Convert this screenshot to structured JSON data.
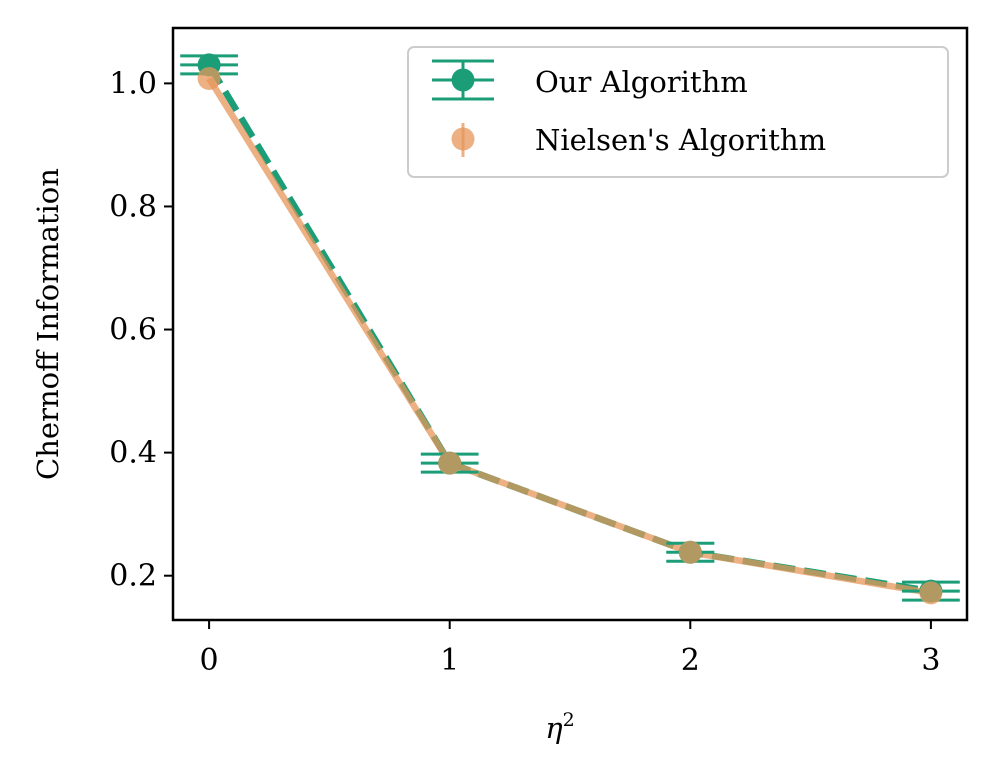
{
  "chart_data": {
    "type": "line",
    "title": "",
    "xlabel": "η",
    "xlabel_superscript": "2",
    "ylabel": "Chernoff Information",
    "xlim": [
      -0.15,
      3.15
    ],
    "ylim": [
      0.128,
      1.09
    ],
    "x_ticks": [
      0,
      1,
      2,
      3
    ],
    "x_tick_labels": [
      "0",
      "1",
      "2",
      "3"
    ],
    "y_ticks": [
      0.2,
      0.4,
      0.6,
      0.8,
      1.0
    ],
    "y_tick_labels": [
      "0.2",
      "0.4",
      "0.6",
      "0.8",
      "1.0"
    ],
    "grid": false,
    "legend_position": "top-right",
    "series": [
      {
        "name": "Our Algorithm",
        "color": "#1b9e77",
        "line_style": "dashed",
        "x": [
          0,
          1,
          2,
          3
        ],
        "y": [
          1.03,
          0.383,
          0.238,
          0.175
        ],
        "xerr": [
          0.12,
          0.12,
          0.1,
          0.12
        ]
      },
      {
        "name": "Nielsen's Algorithm",
        "color": "#e6955a",
        "line_style": "solid",
        "x": [
          0,
          1,
          2,
          3
        ],
        "y": [
          1.008,
          0.383,
          0.238,
          0.172
        ],
        "yerr": [
          0.0,
          0.0,
          0.0,
          0.0
        ]
      }
    ]
  }
}
